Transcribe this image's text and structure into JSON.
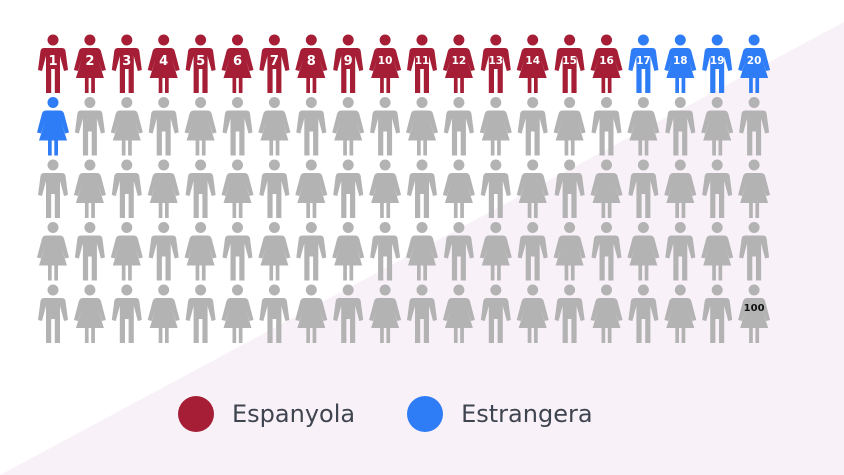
{
  "chart_data": {
    "type": "pictogram",
    "title": "",
    "total_icons": 100,
    "icons_per_row": 20,
    "series": [
      {
        "name": "Espanyola",
        "count": 16,
        "color": "#A51E36"
      },
      {
        "name": "Estrangera",
        "count": 5,
        "color": "#2F7DF6"
      }
    ],
    "remaining_color": "#B3B3B3",
    "numbered_icons": [
      1,
      2,
      3,
      4,
      5,
      6,
      7,
      8,
      9,
      10,
      11,
      12,
      13,
      14,
      15,
      16,
      17,
      18,
      19,
      20,
      100
    ],
    "icon_pattern": "alternating male/female figures"
  },
  "legend": {
    "items": [
      {
        "label": "Espanyola",
        "color": "#A51E36"
      },
      {
        "label": "Estrangera",
        "color": "#2F7DF6"
      }
    ]
  },
  "background": {
    "base": "#ffffff",
    "accent": "#F9F1F8"
  }
}
